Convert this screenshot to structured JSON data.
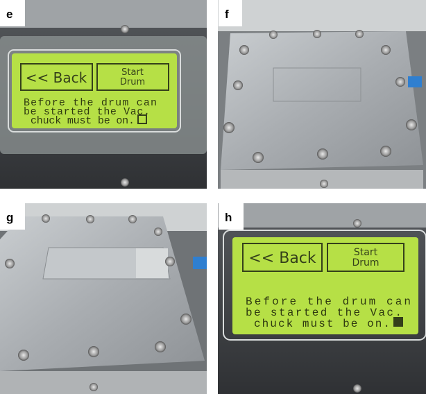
{
  "panels": [
    {
      "label": "e",
      "screen": {
        "buttons": [
          "<< Back",
          [
            "Start",
            "Drum"
          ]
        ],
        "message": [
          "Before the drum can",
          "be started the Vac.",
          "chuck must be on."
        ]
      }
    },
    {
      "label": "f"
    },
    {
      "label": "g"
    },
    {
      "label": "h",
      "screen": {
        "buttons": [
          "<< Back",
          [
            "Start",
            "Drum"
          ]
        ],
        "message": [
          "Before the drum can",
          "be started the Vac.",
          "chuck must be on."
        ]
      }
    }
  ]
}
